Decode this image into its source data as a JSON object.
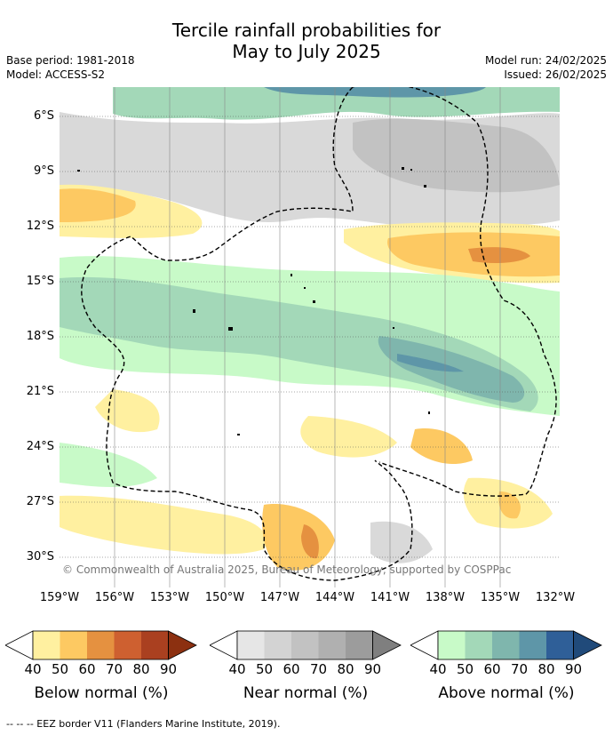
{
  "title_line1": "Tercile rainfall probabilities for",
  "title_line2": "May to July 2025",
  "left_meta": [
    "Base period: 1981-2018",
    "Model: ACCESS-S2"
  ],
  "right_meta": [
    "Model run: 24/02/2025",
    "Issued: 26/02/2025"
  ],
  "lat_labels": [
    "6°S",
    "9°S",
    "12°S",
    "15°S",
    "18°S",
    "21°S",
    "24°S",
    "27°S",
    "30°S"
  ],
  "lon_labels": [
    "159°W",
    "156°W",
    "153°W",
    "150°W",
    "147°W",
    "144°W",
    "141°W",
    "138°W",
    "135°W",
    "132°W"
  ],
  "copyright": "© Commonwealth of Australia 2025, Bureau of Meteorology, supported by COSPPac",
  "legends": [
    {
      "label": "Below normal (%)",
      "ticks": [
        "40",
        "50",
        "60",
        "70",
        "80",
        "90"
      ],
      "colors": [
        "#ffffff",
        "#fff0a0",
        "#fdc962",
        "#e59140",
        "#ce6030",
        "#aa4020",
        "#8c3010"
      ]
    },
    {
      "label": "Near normal (%)",
      "ticks": [
        "40",
        "50",
        "60",
        "70",
        "80",
        "90"
      ],
      "colors": [
        "#ffffff",
        "#e6e6e6",
        "#d3d3d3",
        "#c2c2c2",
        "#b0b0b0",
        "#9c9c9c",
        "#7f7f7f"
      ]
    },
    {
      "label": "Above normal (%)",
      "ticks": [
        "40",
        "50",
        "60",
        "70",
        "80",
        "90"
      ],
      "colors": [
        "#ffffff",
        "#c8fac8",
        "#a3d8b8",
        "#7fb6ad",
        "#5e96a8",
        "#2f5f98",
        "#204a7a"
      ]
    }
  ],
  "footer": "--  --  -- EEZ border V11 (Flanders Marine Institute, 2019).",
  "colors": {
    "gray": "#d9d9d9",
    "yellow": "#fff0a0",
    "orange": "#fdc962",
    "dark_orange": "#e59140",
    "green": "#c8fac8",
    "teal": "#a3d8b8",
    "dark_teal": "#7fb6ad",
    "blue": "#5e96a8"
  }
}
